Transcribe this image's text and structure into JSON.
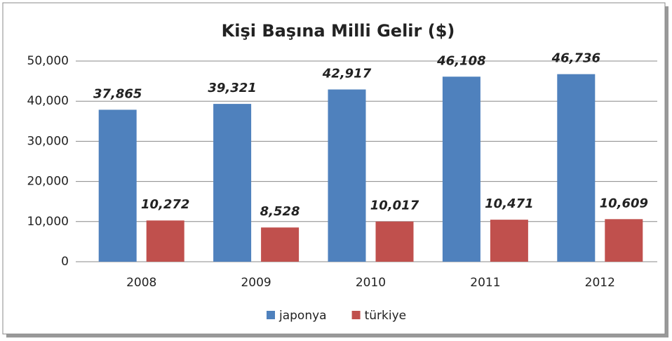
{
  "chart_data": {
    "type": "bar",
    "title": "Kişi Başına Milli Gelir ($)",
    "categories": [
      "2008",
      "2009",
      "2010",
      "2011",
      "2012"
    ],
    "series": [
      {
        "name": "japonya",
        "color": "#4f81bd",
        "values": [
          37865,
          39321,
          42917,
          46108,
          46736
        ],
        "value_labels": [
          "37,865",
          "39,321",
          "42,917",
          "46,108",
          "46,736"
        ]
      },
      {
        "name": "türkiye",
        "color": "#c0504d",
        "values": [
          10272,
          8528,
          10017,
          10471,
          10609
        ],
        "value_labels": [
          "10,272",
          "8,528",
          "10,017",
          "10,471",
          "10,609"
        ]
      }
    ],
    "ylim": [
      0,
      50000
    ],
    "yticks": [
      0,
      {
        "value": 10000,
        "label": "10,000"
      },
      {
        "value": 20000,
        "label": "20,000"
      },
      {
        "value": 30000,
        "label": "30,000"
      },
      {
        "value": 40000,
        "label": "40,000"
      },
      {
        "value": 50000,
        "label": "50,000"
      }
    ],
    "grid": true,
    "legend": "bottom"
  }
}
